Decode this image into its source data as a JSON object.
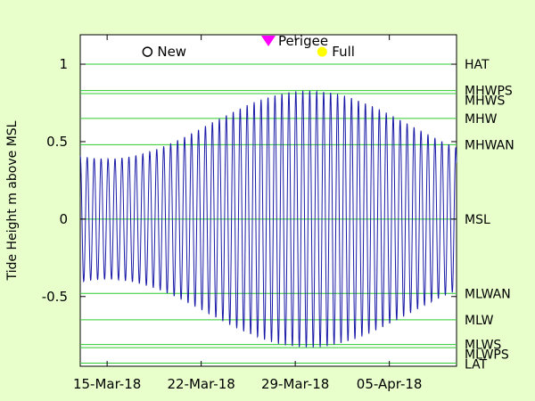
{
  "chart_data": {
    "type": "line",
    "ylabel": "Tide Height m above MSL",
    "ylim": [
      -0.95,
      1.19
    ],
    "x_range": [
      "2018-03-13",
      "2018-04-10"
    ],
    "x_ticks": [
      {
        "date": "2018-03-15",
        "label": "15-Mar-18"
      },
      {
        "date": "2018-03-22",
        "label": "22-Mar-18"
      },
      {
        "date": "2018-03-29",
        "label": "29-Mar-18"
      },
      {
        "date": "2018-04-05",
        "label": "05-Apr-18"
      }
    ],
    "y_ticks": [
      {
        "value": 1,
        "label": "1"
      },
      {
        "value": 0.5,
        "label": "0.5"
      },
      {
        "value": 0,
        "label": "0"
      },
      {
        "value": -0.5,
        "label": "-0.5"
      }
    ],
    "reference_levels": [
      {
        "label": "HAT",
        "value": 1.0
      },
      {
        "label": "MHWPS",
        "value": 0.83
      },
      {
        "label": "MHWS",
        "value": 0.81
      },
      {
        "label": "MHW",
        "value": 0.65
      },
      {
        "label": "MHWAN",
        "value": 0.48
      },
      {
        "label": "MSL",
        "value": 0.0
      },
      {
        "label": "MLWAN",
        "value": -0.48
      },
      {
        "label": "MLW",
        "value": -0.65
      },
      {
        "label": "MLWS",
        "value": -0.81
      },
      {
        "label": "MLWPS",
        "value": -0.83
      },
      {
        "label": "LAT",
        "value": -0.93
      }
    ],
    "markers": [
      {
        "label": "New",
        "date": "2018-03-18",
        "value": 1.08,
        "symbol": "open-circle"
      },
      {
        "label": "Perigee",
        "date": "2018-03-27",
        "value": 1.15,
        "symbol": "triangle-down"
      },
      {
        "label": "Full",
        "date": "2018-03-31",
        "value": 1.08,
        "symbol": "filled-circle"
      }
    ],
    "series": [
      {
        "tide_model": {
          "constituent_period_hours": 12.42,
          "peak_date": "2018-03-30",
          "mean_amplitude": 0.61,
          "envelope_amplitude": 0.22,
          "envelope_period_days": 30
        }
      }
    ],
    "colors": {
      "background": "#e8ffcc",
      "plot_background": "#ffffff",
      "series": "#1a1aa8",
      "reference_lines": "#2ecc2e",
      "perigee": "#ff00ff",
      "full": "#ffff00"
    }
  }
}
